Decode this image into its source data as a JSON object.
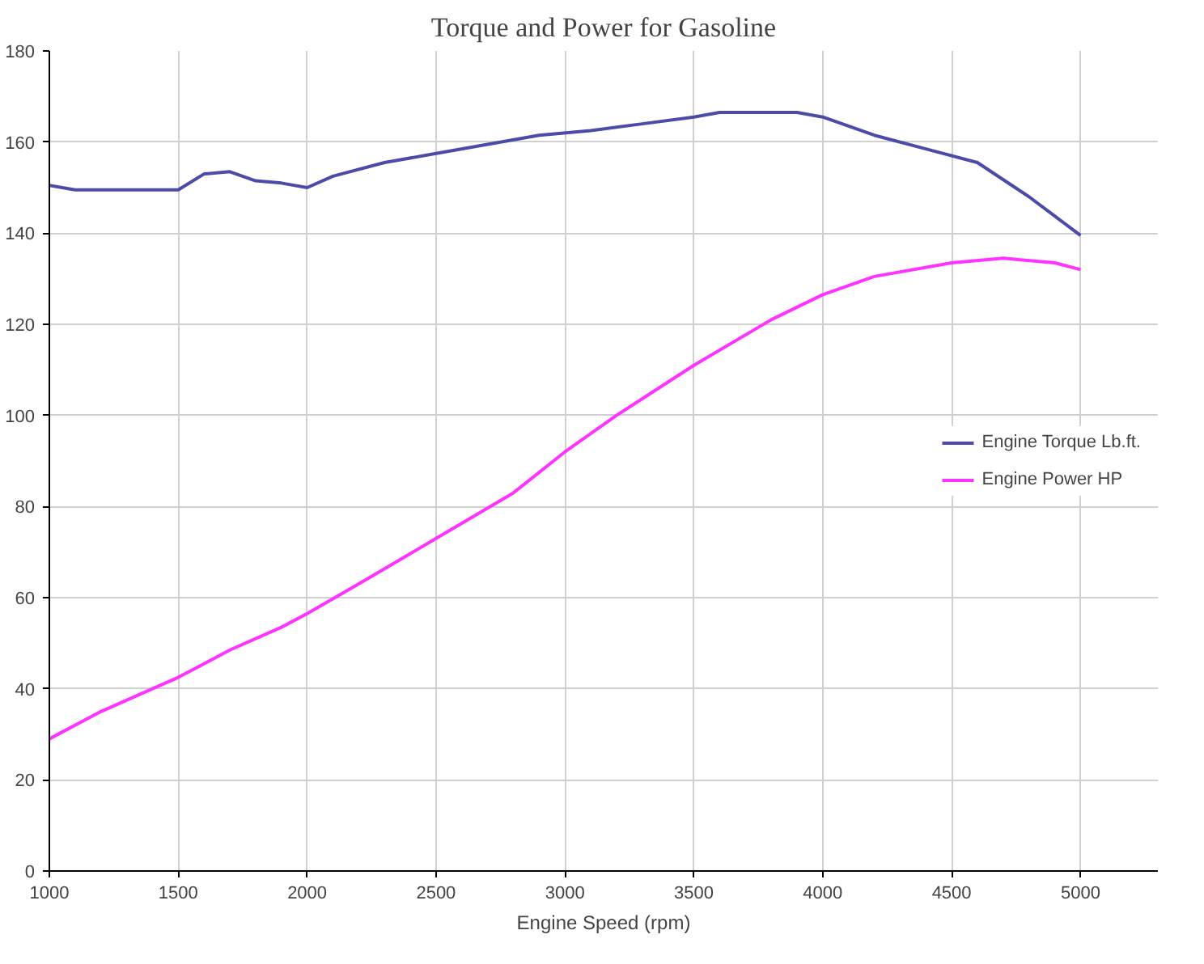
{
  "chart_data": {
    "type": "line",
    "title": "Torque and Power for Gasoline",
    "xlabel": "Engine Speed (rpm)",
    "xlim": [
      1000,
      5300
    ],
    "xticks": [
      1000,
      1500,
      2000,
      2500,
      3000,
      3500,
      4000,
      4500,
      5000
    ],
    "ylim": [
      0,
      180
    ],
    "yticks": [
      0,
      20,
      40,
      60,
      80,
      100,
      120,
      140,
      160,
      180
    ],
    "grid": true,
    "legend": "right",
    "marker": "none",
    "line_style": "solid",
    "series": [
      {
        "name": "Engine Torque Lb.ft.",
        "color": "#4b4ba8",
        "x": [
          1000,
          1100,
          1300,
          1500,
          1600,
          1700,
          1800,
          1900,
          2000,
          2100,
          2300,
          2500,
          2700,
          2900,
          3100,
          3300,
          3500,
          3600,
          3900,
          4000,
          4200,
          4400,
          4600,
          4800,
          5000
        ],
        "values": [
          150.5,
          149.5,
          149.5,
          149.5,
          153,
          153.5,
          151.5,
          151,
          150,
          152.5,
          155.5,
          157.5,
          159.5,
          161.5,
          162.5,
          164,
          165.5,
          166.5,
          166.5,
          165.5,
          161.5,
          158.5,
          155.5,
          148,
          139.5
        ]
      },
      {
        "name": "Engine Power HP",
        "color": "#ff33ff",
        "x": [
          1000,
          1200,
          1400,
          1500,
          1700,
          1900,
          2000,
          2200,
          2500,
          2800,
          3000,
          3200,
          3500,
          3800,
          4000,
          4200,
          4500,
          4700,
          4900,
          5000
        ],
        "values": [
          29,
          35,
          40,
          42.5,
          48.5,
          53.5,
          56.5,
          63,
          73,
          83,
          92,
          100,
          111,
          121,
          126.5,
          130.5,
          133.5,
          134.5,
          133.5,
          132
        ]
      }
    ]
  }
}
